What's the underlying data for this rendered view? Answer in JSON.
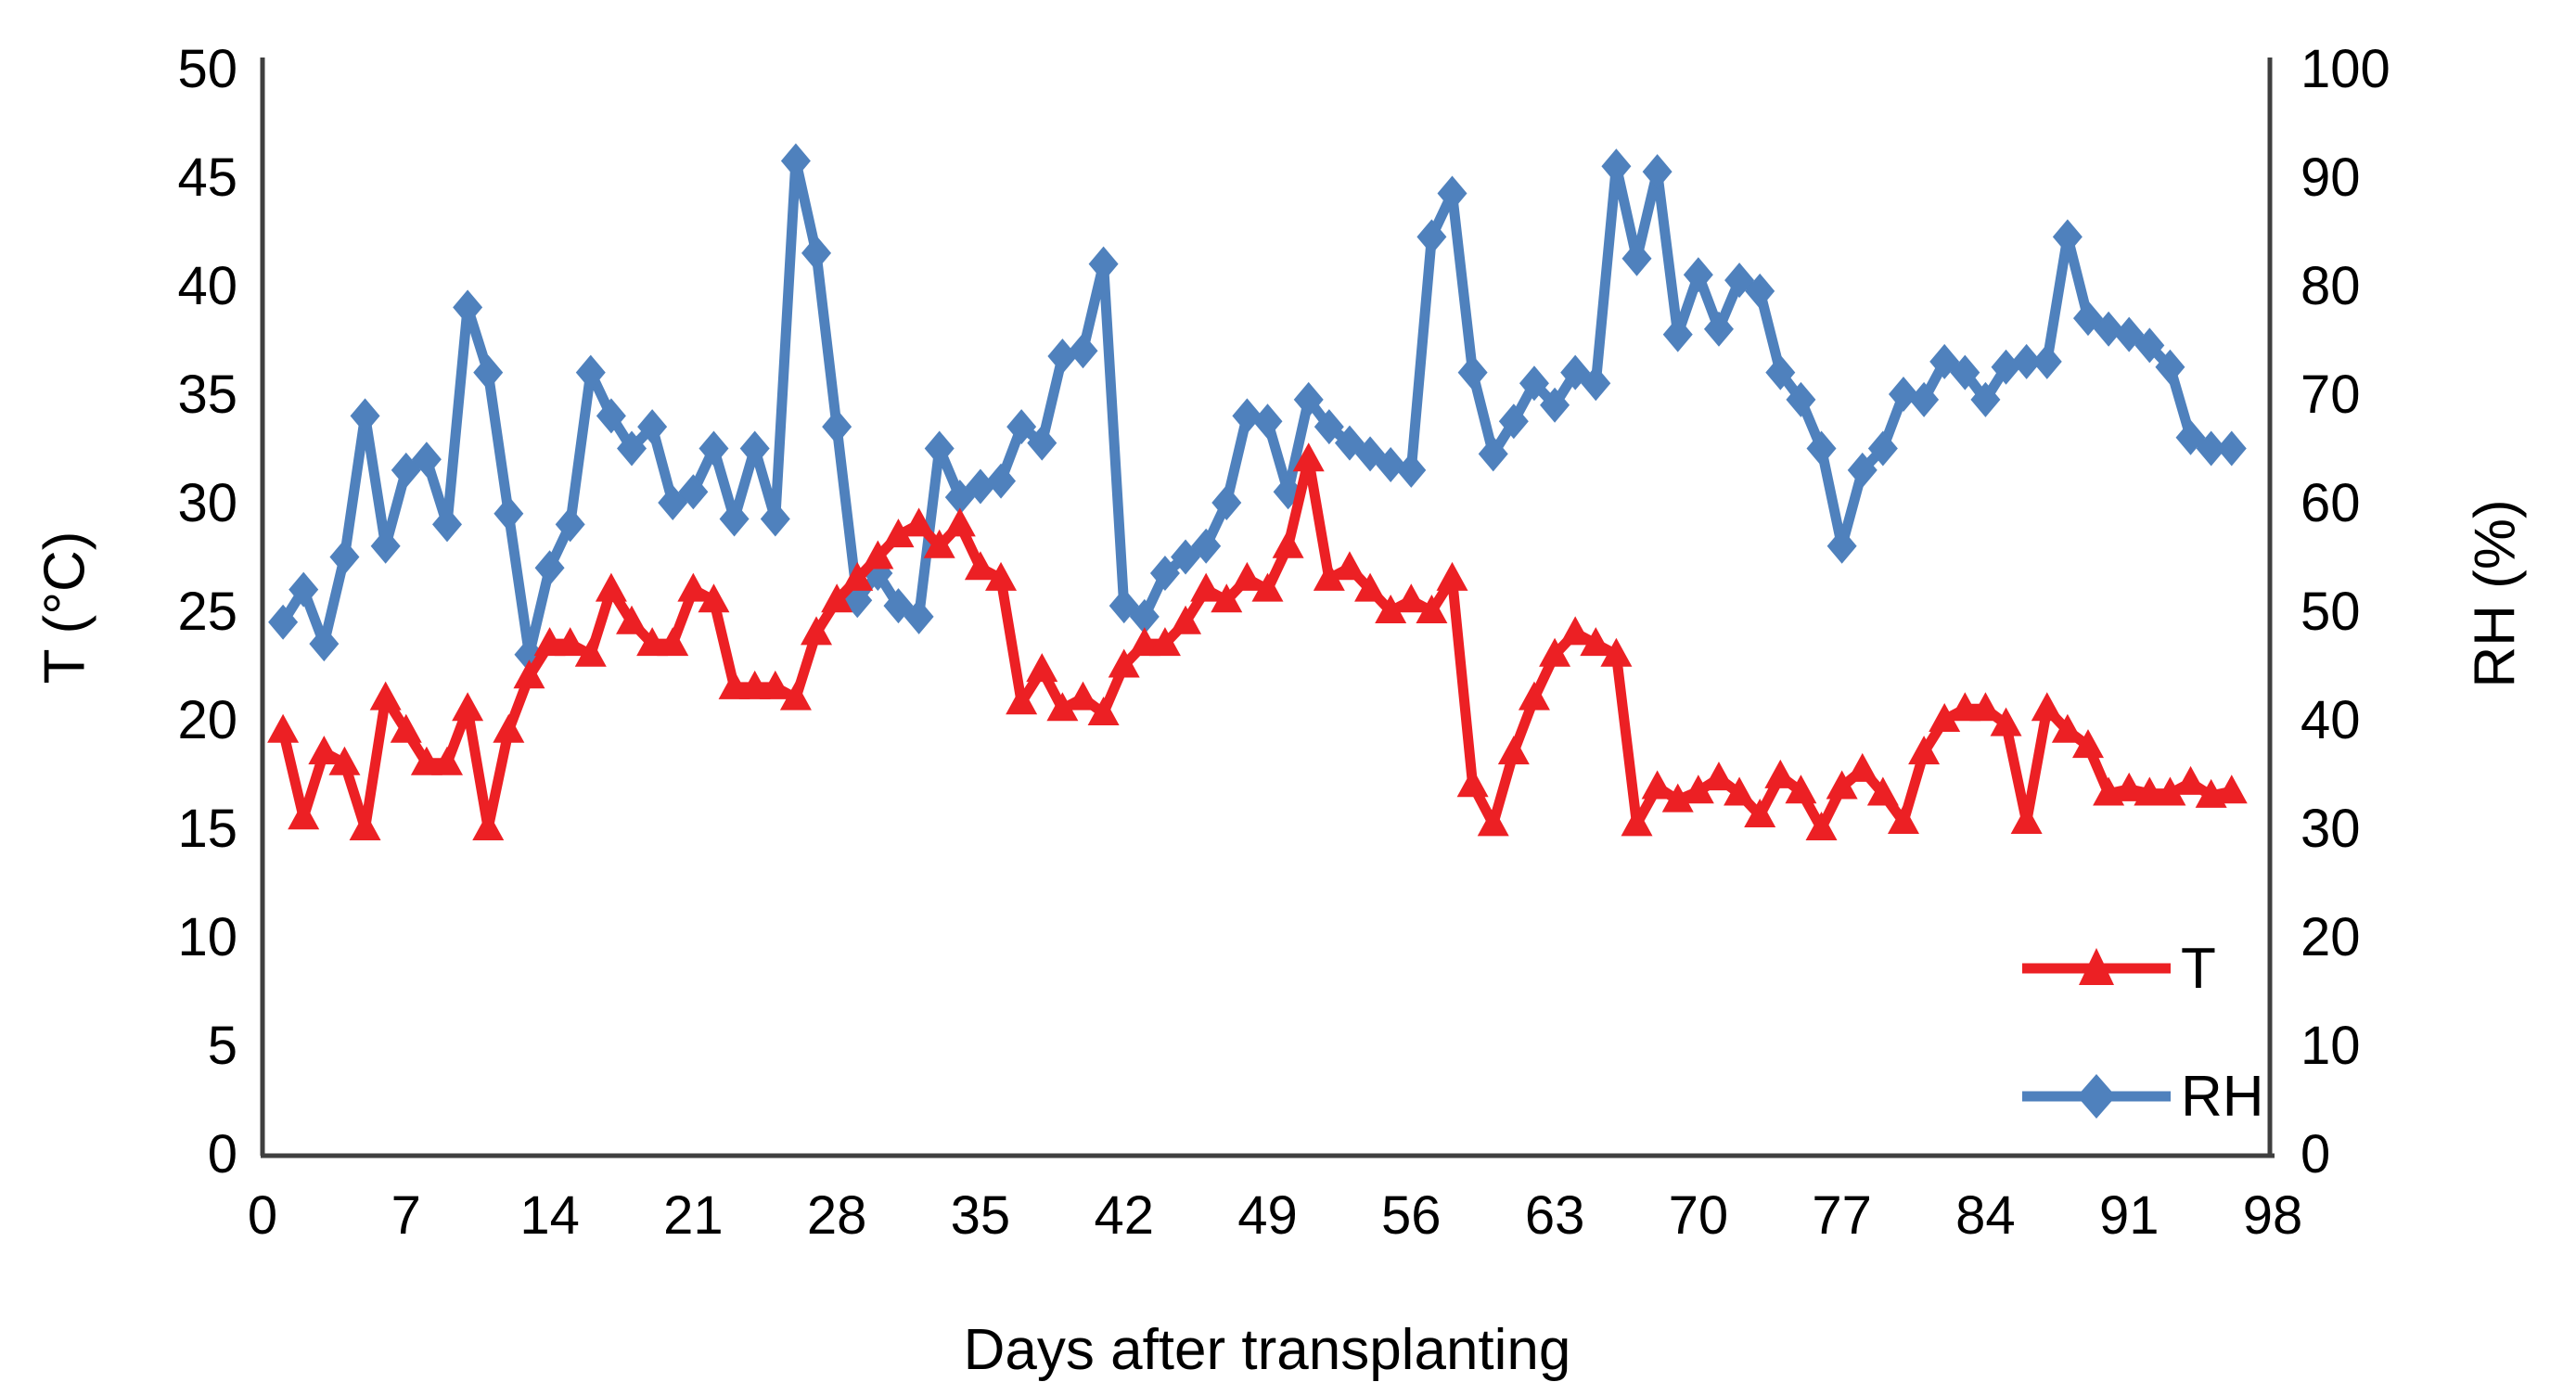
{
  "figure": {
    "x_axis_title": "Days after transplanting",
    "left_axis_title": "T (°C)",
    "right_axis_title": "RH (%)"
  },
  "legend": {
    "t_label": "T",
    "rh_label": "RH"
  },
  "colors": {
    "temperature": "#ec2024",
    "humidity": "#4f81bd",
    "axis_line": "#3f3f3f",
    "text": "#000000"
  },
  "chart_data": {
    "type": "line",
    "title": "",
    "xlabel": "Days after transplanting",
    "ylabel_left": "T (°C)",
    "ylabel_right": "RH (%)",
    "grid": false,
    "legend_position": "inside bottom-right",
    "xlim": [
      0,
      98
    ],
    "x_ticks": [
      0,
      7,
      14,
      21,
      28,
      35,
      42,
      49,
      56,
      63,
      70,
      77,
      84,
      91,
      98
    ],
    "ylim_left": [
      0,
      50
    ],
    "y_ticks_left": [
      0,
      5,
      10,
      15,
      20,
      25,
      30,
      35,
      40,
      45,
      50
    ],
    "ylim_right": [
      0,
      100
    ],
    "y_ticks_right": [
      0,
      10,
      20,
      30,
      40,
      50,
      60,
      70,
      80,
      90,
      100
    ],
    "x_start_day": 1,
    "series": [
      {
        "name": "T",
        "axis": "left",
        "marker": "triangle",
        "color": "#ec2024",
        "values": [
          19.5,
          15.5,
          18.5,
          18,
          15,
          21,
          19.5,
          18,
          18,
          20.5,
          15,
          19.5,
          22,
          23.5,
          23.5,
          23,
          26,
          24.5,
          23.5,
          23.5,
          26,
          25.5,
          21.5,
          21.5,
          21.5,
          21,
          24,
          25.5,
          26.5,
          27.5,
          28.5,
          29,
          28,
          29,
          27,
          26.5,
          20.8,
          22.3,
          20.5,
          21,
          20.3,
          22.5,
          23.5,
          23.5,
          24.5,
          26,
          25.5,
          26.5,
          26,
          28,
          32,
          26.5,
          27,
          26,
          25,
          25.5,
          25,
          26.5,
          17,
          15.2,
          18.5,
          21,
          23,
          24,
          23.5,
          23,
          15.2,
          16.9,
          16.3,
          16.7,
          17.3,
          16.6,
          15.6,
          17.4,
          16.7,
          15,
          16.9,
          17.7,
          16.6,
          15.3,
          18.5,
          20,
          20.5,
          20.5,
          19.8,
          15.3,
          20.5,
          19.5,
          18.8,
          16.6,
          16.8,
          16.6,
          16.6,
          17.1,
          16.5,
          16.7
        ]
      },
      {
        "name": "RH",
        "axis": "right",
        "marker": "diamond",
        "color": "#4f81bd",
        "values": [
          49,
          52,
          47,
          55,
          68,
          56,
          63,
          64,
          58,
          78,
          72,
          59,
          46,
          54,
          58,
          72,
          68,
          65,
          67,
          60,
          61,
          65,
          58.5,
          65,
          58.5,
          91.5,
          83,
          67,
          51,
          53.5,
          50.5,
          49.5,
          65,
          60.5,
          61.5,
          62,
          67,
          65.5,
          73.5,
          74,
          82,
          50.5,
          49.5,
          53.5,
          55,
          56,
          60,
          68,
          67.5,
          61,
          69.5,
          67,
          65.5,
          64.5,
          63.5,
          63,
          84.5,
          88.5,
          72,
          64.5,
          67.5,
          71,
          69,
          72,
          71,
          91,
          82.5,
          90.5,
          75.5,
          81,
          76,
          80.5,
          79.5,
          72,
          69.5,
          65,
          56,
          63,
          65,
          70,
          69.5,
          73,
          72,
          69.5,
          72.5,
          73,
          73,
          84.5,
          77,
          76,
          75.5,
          74.5,
          72.5,
          66,
          65,
          65
        ]
      }
    ]
  }
}
